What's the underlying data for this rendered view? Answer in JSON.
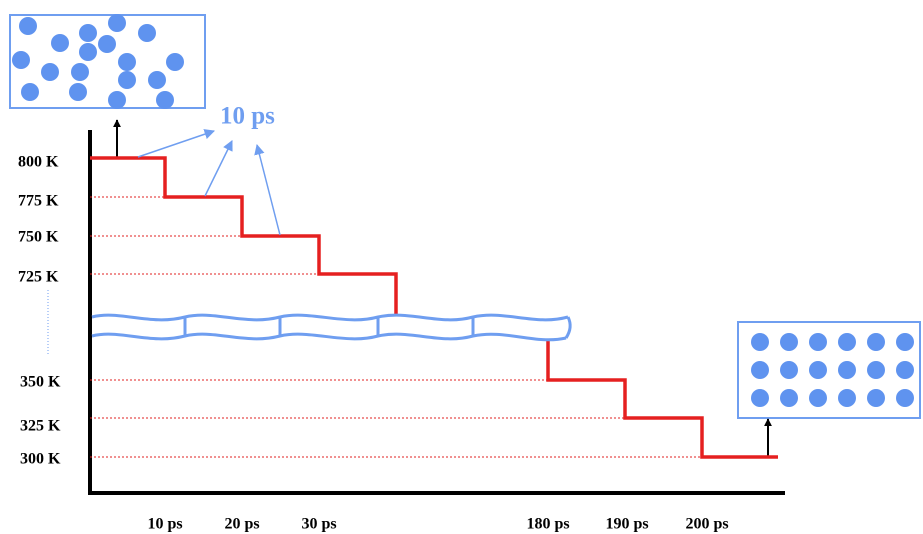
{
  "y_labels": [
    "800 K",
    "775 K",
    "750 K",
    "725 K",
    "350 K",
    "325 K",
    "300 K"
  ],
  "x_labels": [
    "10 ps",
    "20 ps",
    "30 ps",
    "180 ps",
    "190 ps",
    "200 ps"
  ],
  "annotation": "10 ps"
}
